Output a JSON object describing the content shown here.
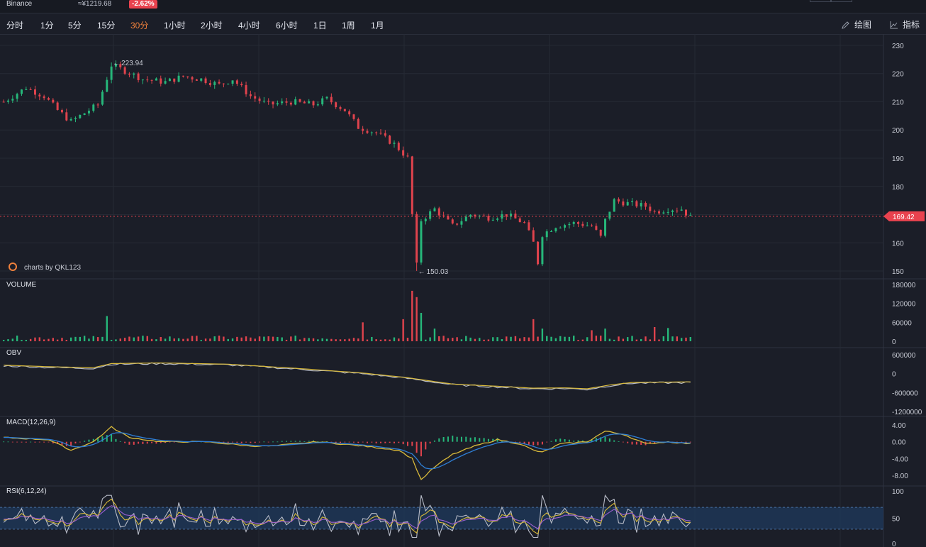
{
  "header": {
    "exchange": "Binance",
    "price": "≈¥1219.68",
    "change": "-2.62%"
  },
  "timeframes": [
    {
      "label": "分时",
      "active": false
    },
    {
      "label": "1分",
      "active": false
    },
    {
      "label": "5分",
      "active": false
    },
    {
      "label": "15分",
      "active": false
    },
    {
      "label": "30分",
      "active": true
    },
    {
      "label": "1小时",
      "active": false
    },
    {
      "label": "2小时",
      "active": false
    },
    {
      "label": "4小时",
      "active": false
    },
    {
      "label": "6小时",
      "active": false
    },
    {
      "label": "1日",
      "active": false
    },
    {
      "label": "1周",
      "active": false
    },
    {
      "label": "1月",
      "active": false
    }
  ],
  "tools": {
    "draw_label": "绘图",
    "indicator_label": "指标"
  },
  "colors": {
    "up": "#26b77a",
    "down": "#e0434d",
    "grid": "#262a35",
    "background": "#1b1e28",
    "price_tag": "#e9424e",
    "ma_yellow": "#d8b93a",
    "line_white": "#b8bcc8",
    "line_blue": "#2f7fd6",
    "line_purple": "#9b5fd0",
    "watermark": "#f0813c"
  },
  "watermark": "charts by QKL123",
  "chart_data": {
    "type": "candlestick",
    "price": {
      "axis_ticks": [
        230,
        220,
        210,
        200,
        190,
        180,
        170,
        160,
        150
      ],
      "last_price": "169.42",
      "last_price_value": 169.42,
      "high_annotation": "223.94",
      "high_value": 223.94,
      "low_annotation": "150.03",
      "low_value": 150.03,
      "trend": [
        [
          0,
          210
        ],
        [
          5,
          215
        ],
        [
          9,
          212
        ],
        [
          12,
          207
        ],
        [
          15,
          203
        ],
        [
          18,
          206
        ],
        [
          21,
          209
        ],
        [
          24,
          223
        ],
        [
          27,
          221
        ],
        [
          31,
          218
        ],
        [
          36,
          217
        ],
        [
          40,
          219
        ],
        [
          44,
          218
        ],
        [
          48,
          216
        ],
        [
          51,
          218
        ],
        [
          55,
          212
        ],
        [
          59,
          209
        ],
        [
          64,
          210
        ],
        [
          69,
          209
        ],
        [
          72,
          211
        ],
        [
          76,
          207
        ],
        [
          79,
          201
        ],
        [
          83,
          199
        ],
        [
          87,
          195
        ],
        [
          90,
          190
        ],
        [
          91,
          170
        ],
        [
          92,
          152
        ],
        [
          93,
          168
        ],
        [
          96,
          172
        ],
        [
          100,
          166
        ],
        [
          104,
          170
        ],
        [
          108,
          169
        ],
        [
          112,
          170
        ],
        [
          116,
          167
        ],
        [
          118,
          160
        ],
        [
          119,
          153
        ],
        [
          120,
          163
        ],
        [
          123,
          166
        ],
        [
          127,
          167
        ],
        [
          131,
          166
        ],
        [
          133,
          162
        ],
        [
          134,
          168
        ],
        [
          136,
          175
        ],
        [
          139,
          174
        ],
        [
          143,
          173
        ],
        [
          145,
          171
        ],
        [
          148,
          172
        ],
        [
          151,
          172
        ],
        [
          153,
          169
        ]
      ],
      "n_candles": 154,
      "ylim": [
        148,
        233
      ]
    },
    "volume": {
      "title": "VOLUME",
      "axis_ticks": [
        "180000",
        "120000",
        "60000",
        "0"
      ],
      "ylim": [
        0,
        180000
      ],
      "spikes": [
        [
          23,
          80000
        ],
        [
          80,
          60000
        ],
        [
          89,
          70000
        ],
        [
          91,
          160000
        ],
        [
          92,
          140000
        ],
        [
          93,
          90000
        ],
        [
          96,
          40000
        ],
        [
          118,
          70000
        ],
        [
          120,
          40000
        ],
        [
          131,
          35000
        ],
        [
          134,
          40000
        ],
        [
          145,
          45000
        ],
        [
          148,
          42000
        ]
      ]
    },
    "obv": {
      "title": "OBV",
      "axis_ticks": [
        "600000",
        "0",
        "-600000",
        "-1200000"
      ],
      "ylim": [
        -1200000,
        600000
      ],
      "path": [
        [
          0,
          250000
        ],
        [
          10,
          200000
        ],
        [
          20,
          170000
        ],
        [
          24,
          300000
        ],
        [
          35,
          320000
        ],
        [
          50,
          280000
        ],
        [
          65,
          150000
        ],
        [
          80,
          0
        ],
        [
          90,
          -150000
        ],
        [
          100,
          -350000
        ],
        [
          110,
          -420000
        ],
        [
          118,
          -480000
        ],
        [
          125,
          -470000
        ],
        [
          130,
          -500000
        ],
        [
          135,
          -380000
        ],
        [
          140,
          -300000
        ],
        [
          153,
          -280000
        ]
      ]
    },
    "macd": {
      "title": "MACD(12,26,9)",
      "axis_ticks": [
        "4.00",
        "0.00",
        "-4.00",
        "-8.00"
      ],
      "ylim": [
        -10,
        5
      ],
      "path": [
        [
          0,
          1
        ],
        [
          10,
          0.5
        ],
        [
          15,
          -2
        ],
        [
          20,
          0
        ],
        [
          24,
          3.5
        ],
        [
          28,
          1
        ],
        [
          35,
          0
        ],
        [
          45,
          0
        ],
        [
          55,
          -1
        ],
        [
          60,
          -1
        ],
        [
          70,
          0
        ],
        [
          80,
          -1
        ],
        [
          88,
          -2
        ],
        [
          91,
          -4
        ],
        [
          93,
          -9
        ],
        [
          96,
          -6
        ],
        [
          100,
          -3
        ],
        [
          105,
          -1
        ],
        [
          110,
          0.5
        ],
        [
          115,
          -0.5
        ],
        [
          118,
          -2
        ],
        [
          120,
          -2.5
        ],
        [
          124,
          -0.5
        ],
        [
          130,
          0
        ],
        [
          134,
          2.5
        ],
        [
          138,
          1.8
        ],
        [
          143,
          -0.5
        ],
        [
          148,
          0
        ],
        [
          153,
          -0.5
        ]
      ]
    },
    "rsi": {
      "title": "RSI(6,12,24)",
      "axis_ticks": [
        "100",
        "50",
        "0"
      ],
      "ylim": [
        0,
        100
      ],
      "band": [
        30,
        70
      ]
    }
  }
}
